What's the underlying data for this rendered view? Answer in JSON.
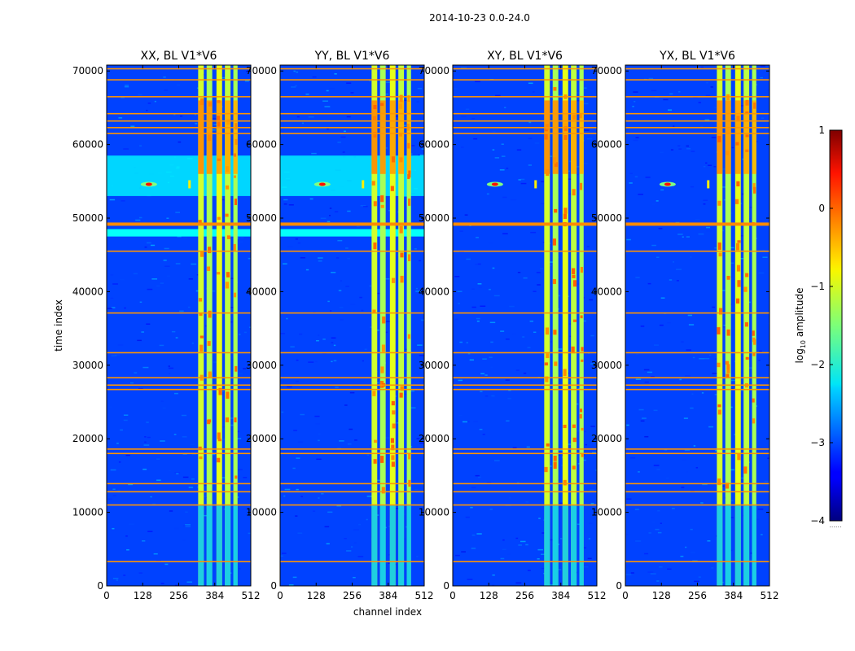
{
  "chart_data": {
    "type": "heatmap",
    "suptitle": "2014-10-23 0.0-24.0",
    "xlabel": "channel index",
    "ylabel": "time index",
    "x_ticks": [
      0,
      128,
      256,
      384,
      512
    ],
    "y_ticks": [
      0,
      10000,
      20000,
      30000,
      40000,
      50000,
      60000,
      70000
    ],
    "xlim": [
      0,
      512
    ],
    "ylim": [
      0,
      70800
    ],
    "panels": [
      {
        "title": "XX, BL V1*V6",
        "variant": "xx"
      },
      {
        "title": "YY, BL V1*V6",
        "variant": "yy"
      },
      {
        "title": "XY, BL V1*V6",
        "variant": "xy"
      },
      {
        "title": "YX, BL V1*V6",
        "variant": "yx"
      }
    ],
    "rfi_bands": [
      {
        "ch_start": 325,
        "ch_end": 345,
        "level": -1.1
      },
      {
        "ch_start": 355,
        "ch_end": 375,
        "level": -1.3
      },
      {
        "ch_start": 390,
        "ch_end": 410,
        "level": -1.0
      },
      {
        "ch_start": 420,
        "ch_end": 440,
        "level": -1.2
      },
      {
        "ch_start": 450,
        "ch_end": 465,
        "level": -1.3
      }
    ],
    "rfi_time_lines": [
      3300,
      11000,
      12800,
      13900,
      18000,
      18600,
      26700,
      27300,
      28300,
      31700,
      37100,
      45500,
      49200,
      61500,
      62300,
      63200,
      64200,
      66500,
      68800,
      70300
    ],
    "colorbar": {
      "label": "log10 amplitude",
      "label_base": "log",
      "label_sub": "10",
      "label_rest": " amplitude",
      "min": -4,
      "max": 1,
      "ticks": [
        "1",
        "0",
        "−1",
        "−2",
        "−3",
        "−4"
      ],
      "ellipsis": "......"
    }
  }
}
